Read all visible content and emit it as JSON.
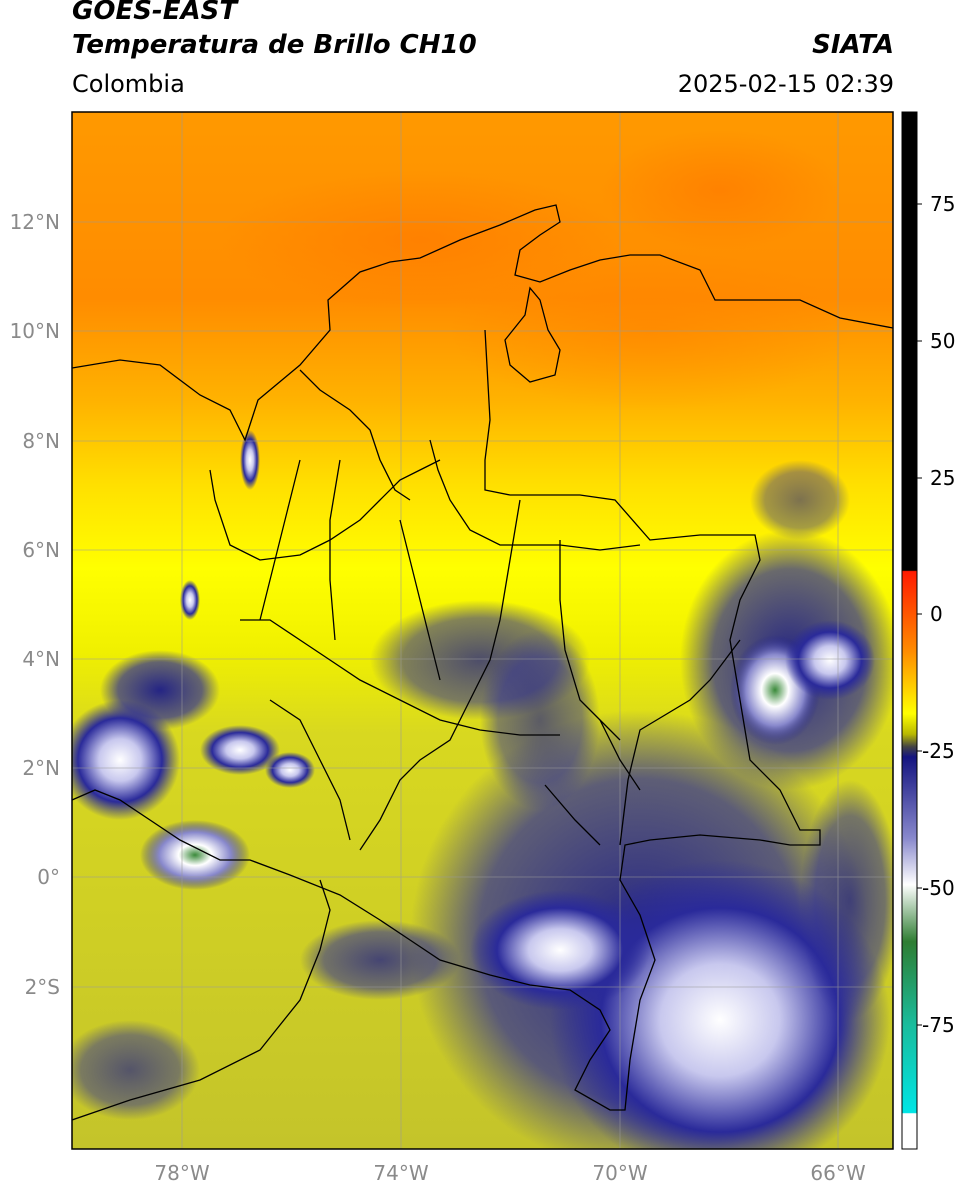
{
  "header": {
    "satellite": "GOES-EAST",
    "product": "Temperatura de Brillo CH10",
    "region": "Colombia",
    "source": "SIATA",
    "datetime": "2025-02-15 02:39"
  },
  "map": {
    "lon_ticks": [
      "78°W",
      "74°W",
      "70°W",
      "66°W"
    ],
    "lat_ticks": [
      "12°N",
      "10°N",
      "8°N",
      "6°N",
      "4°N",
      "2°N",
      "0°",
      "2°S"
    ],
    "lon_range": [
      -80,
      -65
    ],
    "lat_range": [
      -4.7,
      14.2
    ]
  },
  "colorbar": {
    "ticks": [
      "75",
      "50",
      "25",
      "0",
      "-25",
      "-50",
      "-75"
    ],
    "range": [
      -100,
      90
    ],
    "colors": {
      "black": "#000000",
      "red": "#ff1a00",
      "orange": "#ff8c00",
      "yellow": "#ffff00",
      "olive": "#b8b800",
      "dark_gray": "#444444",
      "navy": "#141480",
      "white": "#ffffff",
      "green": "#2e7d32",
      "teal": "#1abc9c",
      "cyan": "#00e5e5"
    }
  }
}
